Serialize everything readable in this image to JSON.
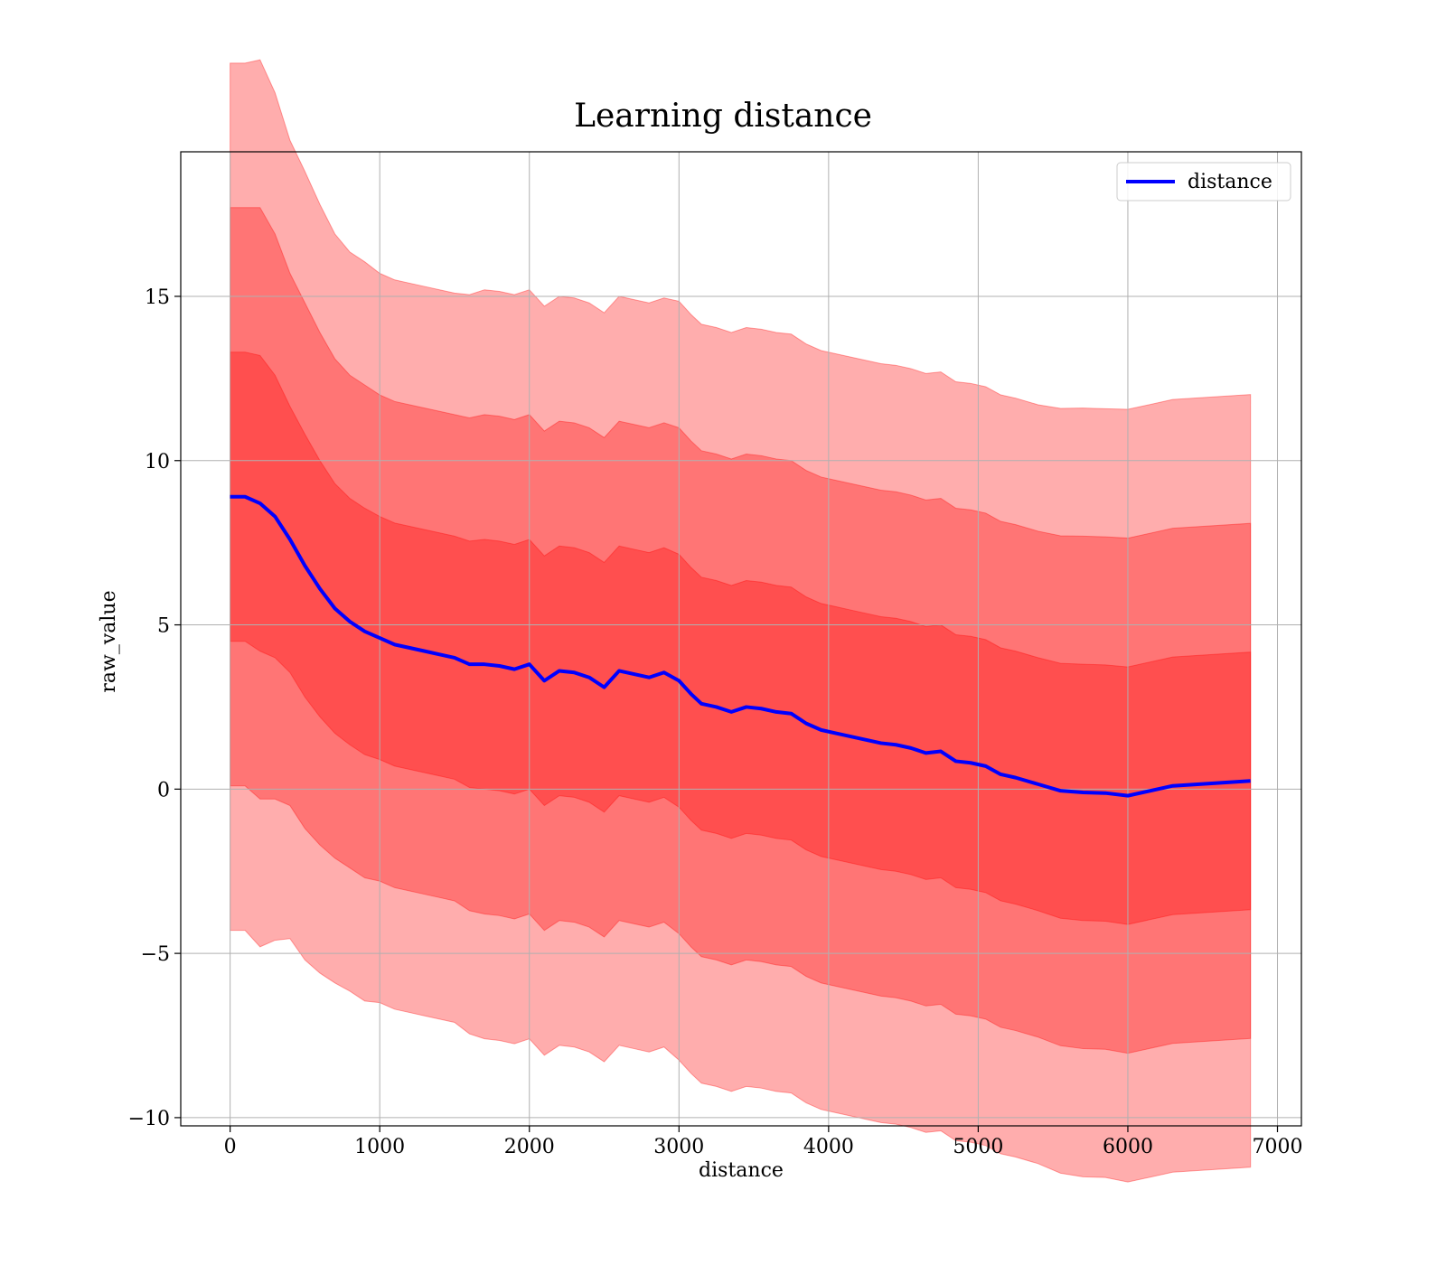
{
  "chart_data": {
    "type": "line",
    "title": "Learning distance",
    "xlabel": "distance",
    "ylabel": "raw_value",
    "xlim": [
      -330,
      7160
    ],
    "ylim": [
      -10.25,
      19.4
    ],
    "x_ticks": [
      0,
      1000,
      2000,
      3000,
      4000,
      5000,
      6000,
      7000
    ],
    "y_ticks": [
      -10,
      -5,
      0,
      5,
      10,
      15
    ],
    "y_tick_labels": [
      "−10",
      "−5",
      "0",
      "5",
      "10",
      "15"
    ],
    "grid": true,
    "legend_position": "top-right",
    "colors": {
      "line": "#0000ff",
      "band": "#ff0000",
      "grid": "#b0b0b0"
    },
    "series": [
      {
        "name": "distance",
        "x": [
          0,
          100,
          200,
          300,
          400,
          500,
          600,
          700,
          800,
          900,
          1000,
          1100,
          1200,
          1300,
          1400,
          1500,
          1600,
          1700,
          1800,
          1900,
          2000,
          2100,
          2200,
          2300,
          2400,
          2500,
          2600,
          2700,
          2800,
          2900,
          3000,
          3080,
          3150,
          3250,
          3350,
          3450,
          3550,
          3650,
          3750,
          3850,
          3950,
          4050,
          4150,
          4250,
          4350,
          4450,
          4550,
          4650,
          4750,
          4850,
          4950,
          5050,
          5150,
          5250,
          5400,
          5550,
          5700,
          5850,
          6000,
          6300,
          6820
        ],
        "y": [
          8.9,
          8.9,
          8.7,
          8.3,
          7.6,
          6.8,
          6.1,
          5.5,
          5.1,
          4.8,
          4.6,
          4.4,
          4.3,
          4.2,
          4.1,
          4.0,
          3.8,
          3.8,
          3.75,
          3.65,
          3.8,
          3.3,
          3.6,
          3.55,
          3.4,
          3.1,
          3.6,
          3.5,
          3.4,
          3.55,
          3.3,
          2.9,
          2.6,
          2.5,
          2.35,
          2.5,
          2.45,
          2.35,
          2.3,
          2.0,
          1.8,
          1.7,
          1.6,
          1.5,
          1.4,
          1.35,
          1.25,
          1.1,
          1.15,
          0.85,
          0.8,
          0.7,
          0.45,
          0.35,
          0.15,
          -0.05,
          -0.1,
          -0.12,
          -0.2,
          0.1,
          0.25
        ],
        "std": [
          4.4,
          4.4,
          4.5,
          4.3,
          4.05,
          4.0,
          3.9,
          3.8,
          3.75,
          3.75,
          3.7,
          3.7,
          3.7,
          3.7,
          3.7,
          3.7,
          3.75,
          3.8,
          3.8,
          3.8,
          3.8,
          3.8,
          3.8,
          3.8,
          3.8,
          3.8,
          3.8,
          3.8,
          3.8,
          3.8,
          3.85,
          3.85,
          3.85,
          3.85,
          3.85,
          3.85,
          3.85,
          3.85,
          3.85,
          3.85,
          3.85,
          3.85,
          3.85,
          3.85,
          3.85,
          3.85,
          3.85,
          3.85,
          3.85,
          3.85,
          3.85,
          3.85,
          3.85,
          3.85,
          3.85,
          3.88,
          3.9,
          3.9,
          3.92,
          3.92,
          3.92
        ]
      }
    ]
  }
}
